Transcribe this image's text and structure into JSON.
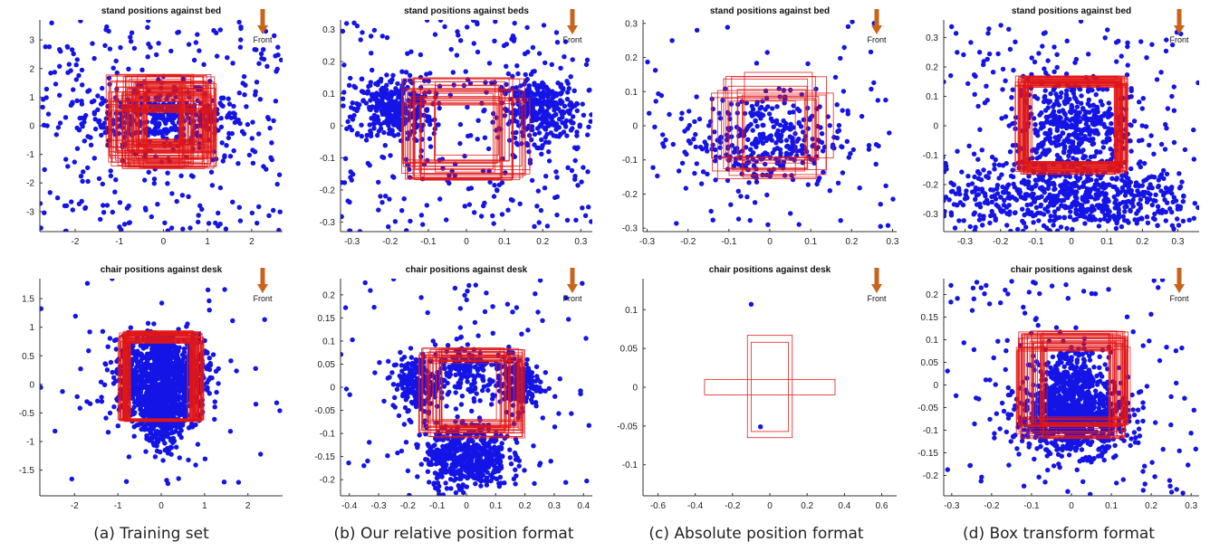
{
  "captions": [
    "(a) Training set",
    "(b) Our relative position format",
    "(c) Absolute position format",
    "(d) Box transform format"
  ],
  "front_label": "Front",
  "colors": {
    "points": "#1414e6",
    "boxes": "#e01616",
    "axis": "#333333",
    "arrow": "#c8651b"
  },
  "chart_data": [
    {
      "type": "scatter",
      "title": "stand positions against bed",
      "xlim": [
        -2.8,
        2.7
      ],
      "ylim": [
        -3.7,
        3.7
      ],
      "xticks": [
        -2,
        -1,
        0,
        1,
        2
      ],
      "yticks": [
        -3,
        -2,
        -1,
        0,
        1,
        2,
        3
      ],
      "boxes": {
        "count": 70,
        "inner_x": [
          -0.35,
          0.35
        ],
        "inner_y": [
          -0.45,
          0.45
        ],
        "outer_x": [
          -1.3,
          1.2
        ],
        "outer_y": [
          -1.5,
          1.8
        ]
      },
      "clusters": [
        {
          "cx": 0,
          "cy": 0.3,
          "sx": 0.9,
          "sy": 0.45,
          "n": 360
        }
      ],
      "scatter": {
        "n": 300
      }
    },
    {
      "type": "scatter",
      "title": "stand positions against beds",
      "xlim": [
        -0.33,
        0.33
      ],
      "ylim": [
        -0.33,
        0.33
      ],
      "xticks": [
        -0.3,
        -0.2,
        -0.1,
        0,
        0.1,
        0.2,
        0.3
      ],
      "yticks": [
        -0.3,
        -0.2,
        -0.1,
        0,
        0.1,
        0.2,
        0.3
      ],
      "boxes": {
        "count": 24,
        "inner_x": [
          -0.08,
          0.07
        ],
        "inner_y": [
          -0.09,
          0.06
        ],
        "outer_x": [
          -0.17,
          0.17
        ],
        "outer_y": [
          -0.17,
          0.15
        ]
      },
      "clusters": [
        {
          "cx": -0.19,
          "cy": 0.05,
          "sx": 0.05,
          "sy": 0.05,
          "n": 330
        },
        {
          "cx": 0.19,
          "cy": 0.05,
          "sx": 0.05,
          "sy": 0.05,
          "n": 330
        }
      ],
      "scatter": {
        "n": 260
      }
    },
    {
      "type": "scatter",
      "title": "stand positions against bed",
      "xlim": [
        -0.31,
        0.31
      ],
      "ylim": [
        -0.31,
        0.31
      ],
      "xticks": [
        -0.3,
        -0.2,
        -0.1,
        0,
        0.1,
        0.2,
        0.3
      ],
      "yticks": [
        -0.3,
        -0.2,
        -0.1,
        0,
        0.1,
        0.2,
        0.3
      ],
      "boxes": {
        "count": 14,
        "inner_x": [
          -0.06,
          0.06
        ],
        "inner_y": [
          -0.09,
          0.06
        ],
        "outer_x": [
          -0.15,
          0.16
        ],
        "outer_y": [
          -0.16,
          0.16
        ]
      },
      "clusters": [
        {
          "cx": -0.02,
          "cy": -0.04,
          "sx": 0.1,
          "sy": 0.07,
          "n": 340
        }
      ],
      "scatter": {
        "n": 70
      }
    },
    {
      "type": "scatter",
      "title": "stand positions against bed",
      "xlim": [
        -0.36,
        0.36
      ],
      "ylim": [
        -0.36,
        0.36
      ],
      "xticks": [
        -0.3,
        -0.2,
        -0.1,
        0,
        0.1,
        0.2,
        0.3
      ],
      "yticks": [
        -0.3,
        -0.2,
        -0.1,
        0,
        0.1,
        0.2,
        0.3
      ],
      "boxes": {
        "count": 40,
        "inner_x": [
          -0.11,
          0.12
        ],
        "inner_y": [
          -0.12,
          0.13
        ],
        "outer_x": [
          -0.16,
          0.16
        ],
        "outer_y": [
          -0.17,
          0.17
        ]
      },
      "clusters": [
        {
          "cx": 0,
          "cy": 0,
          "sx": 0.08,
          "sy": 0.08,
          "n": 420
        },
        {
          "cx": 0,
          "cy": -0.24,
          "sx": 0.18,
          "sy": 0.06,
          "n": 620
        }
      ],
      "scatter": {
        "n": 200
      }
    },
    {
      "type": "scatter",
      "title": "chair positions against desk",
      "xlim": [
        -2.8,
        2.8
      ],
      "ylim": [
        -1.95,
        1.85
      ],
      "xticks": [
        -2,
        -1,
        0,
        1,
        2
      ],
      "yticks": [
        -1.5,
        -1,
        -0.5,
        0,
        0.5,
        1,
        1.5
      ],
      "boxes": {
        "count": 45,
        "inner_x": [
          -0.7,
          0.6
        ],
        "inner_y": [
          -0.6,
          0.7
        ],
        "outer_x": [
          -1.0,
          1.0
        ],
        "outer_y": [
          -0.65,
          0.95
        ]
      },
      "clusters": [
        {
          "cx": -0.55,
          "cy": 0.1,
          "sx": 0.3,
          "sy": 0.35,
          "n": 380
        },
        {
          "cx": 0.55,
          "cy": 0.1,
          "sx": 0.3,
          "sy": 0.35,
          "n": 380
        },
        {
          "cx": 0,
          "cy": -0.45,
          "sx": 0.22,
          "sy": 0.3,
          "n": 520
        },
        {
          "cx": 0,
          "cy": 0.55,
          "sx": 0.15,
          "sy": 0.18,
          "n": 160
        }
      ],
      "scatter": {
        "n": 55
      }
    },
    {
      "type": "scatter",
      "title": "chair positions against desk",
      "xlim": [
        -0.43,
        0.43
      ],
      "ylim": [
        -0.235,
        0.235
      ],
      "xticks": [
        -0.4,
        -0.3,
        -0.2,
        -0.1,
        0,
        0.1,
        0.2,
        0.3,
        0.4
      ],
      "yticks": [
        -0.2,
        -0.15,
        -0.1,
        -0.05,
        0,
        0.05,
        0.1,
        0.15,
        0.2
      ],
      "boxes": {
        "count": 28,
        "inner_x": [
          -0.08,
          0.1
        ],
        "inner_y": [
          -0.07,
          0.05
        ],
        "outer_x": [
          -0.18,
          0.2
        ],
        "outer_y": [
          -0.11,
          0.1
        ]
      },
      "clusters": [
        {
          "cx": -0.17,
          "cy": 0.01,
          "sx": 0.04,
          "sy": 0.03,
          "n": 200
        },
        {
          "cx": 0.17,
          "cy": 0.01,
          "sx": 0.04,
          "sy": 0.03,
          "n": 200
        },
        {
          "cx": 0,
          "cy": -0.15,
          "sx": 0.07,
          "sy": 0.035,
          "n": 520
        },
        {
          "cx": 0,
          "cy": 0.03,
          "sx": 0.05,
          "sy": 0.03,
          "n": 150
        }
      ],
      "scatter": {
        "n": 120
      }
    },
    {
      "type": "scatter",
      "title": "chair positions against desk",
      "xlim": [
        -0.68,
        0.68
      ],
      "ylim": [
        -0.14,
        0.14
      ],
      "xticks": [
        -0.6,
        -0.4,
        -0.2,
        0,
        0.2,
        0.4,
        0.6
      ],
      "yticks": [
        -0.1,
        -0.05,
        0,
        0.05,
        0.1
      ],
      "box_list": [
        [
          -0.12,
          -0.065,
          0.12,
          0.067
        ],
        [
          -0.1,
          -0.057,
          0.1,
          0.058
        ],
        [
          -0.35,
          -0.01,
          0.35,
          0.01
        ]
      ],
      "points": [
        [
          -0.1,
          0.107
        ],
        [
          -0.05,
          -0.051
        ]
      ]
    },
    {
      "type": "scatter",
      "title": "chair positions against desk",
      "xlim": [
        -0.32,
        0.32
      ],
      "ylim": [
        -0.245,
        0.235
      ],
      "xticks": [
        -0.3,
        -0.2,
        -0.1,
        0,
        0.1,
        0.2,
        0.3
      ],
      "yticks": [
        -0.2,
        -0.15,
        -0.1,
        -0.05,
        0,
        0.05,
        0.1,
        0.15,
        0.2
      ],
      "boxes": {
        "count": 36,
        "inner_x": [
          -0.06,
          0.09
        ],
        "inner_y": [
          -0.07,
          0.07
        ],
        "outer_x": [
          -0.14,
          0.15
        ],
        "outer_y": [
          -0.12,
          0.12
        ]
      },
      "clusters": [
        {
          "cx": 0,
          "cy": 0.02,
          "sx": 0.04,
          "sy": 0.03,
          "n": 220
        },
        {
          "cx": 0,
          "cy": -0.07,
          "sx": 0.07,
          "sy": 0.04,
          "n": 900
        }
      ],
      "scatter": {
        "n": 140
      }
    }
  ]
}
